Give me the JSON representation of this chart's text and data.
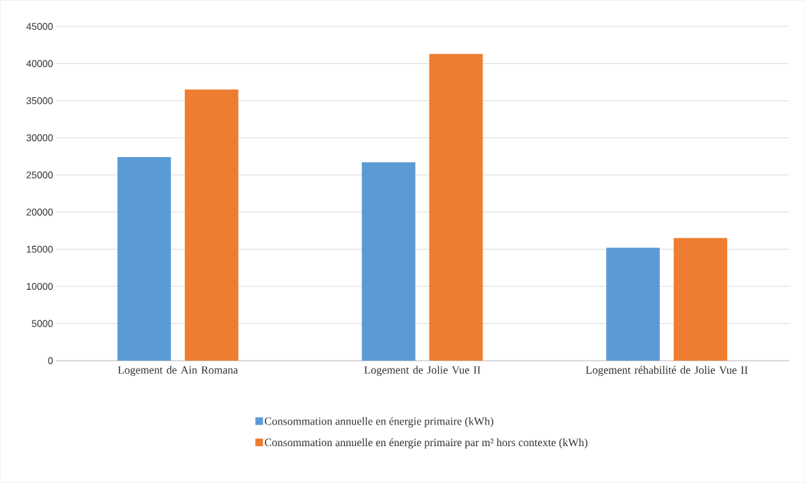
{
  "chart_data": {
    "type": "bar",
    "categories": [
      "Logement de Ain Romana",
      "Logement de Jolie Vue II",
      "Logement réhabilité de Jolie Vue II"
    ],
    "series": [
      {
        "name": "Consommation annuelle en énergie primaire (kWh)",
        "color": "#5b9bd5",
        "values": [
          27400,
          26700,
          15200
        ]
      },
      {
        "name": "Consommation annuelle en énergie primaire par m² hors contexte (kWh)",
        "color": "#ed7d31",
        "values": [
          36500,
          41300,
          16500
        ]
      }
    ],
    "ylim": [
      0,
      45000
    ],
    "yticks": [
      0,
      5000,
      10000,
      15000,
      20000,
      25000,
      30000,
      35000,
      40000,
      45000
    ],
    "grid": "y",
    "legend": "bottom"
  }
}
